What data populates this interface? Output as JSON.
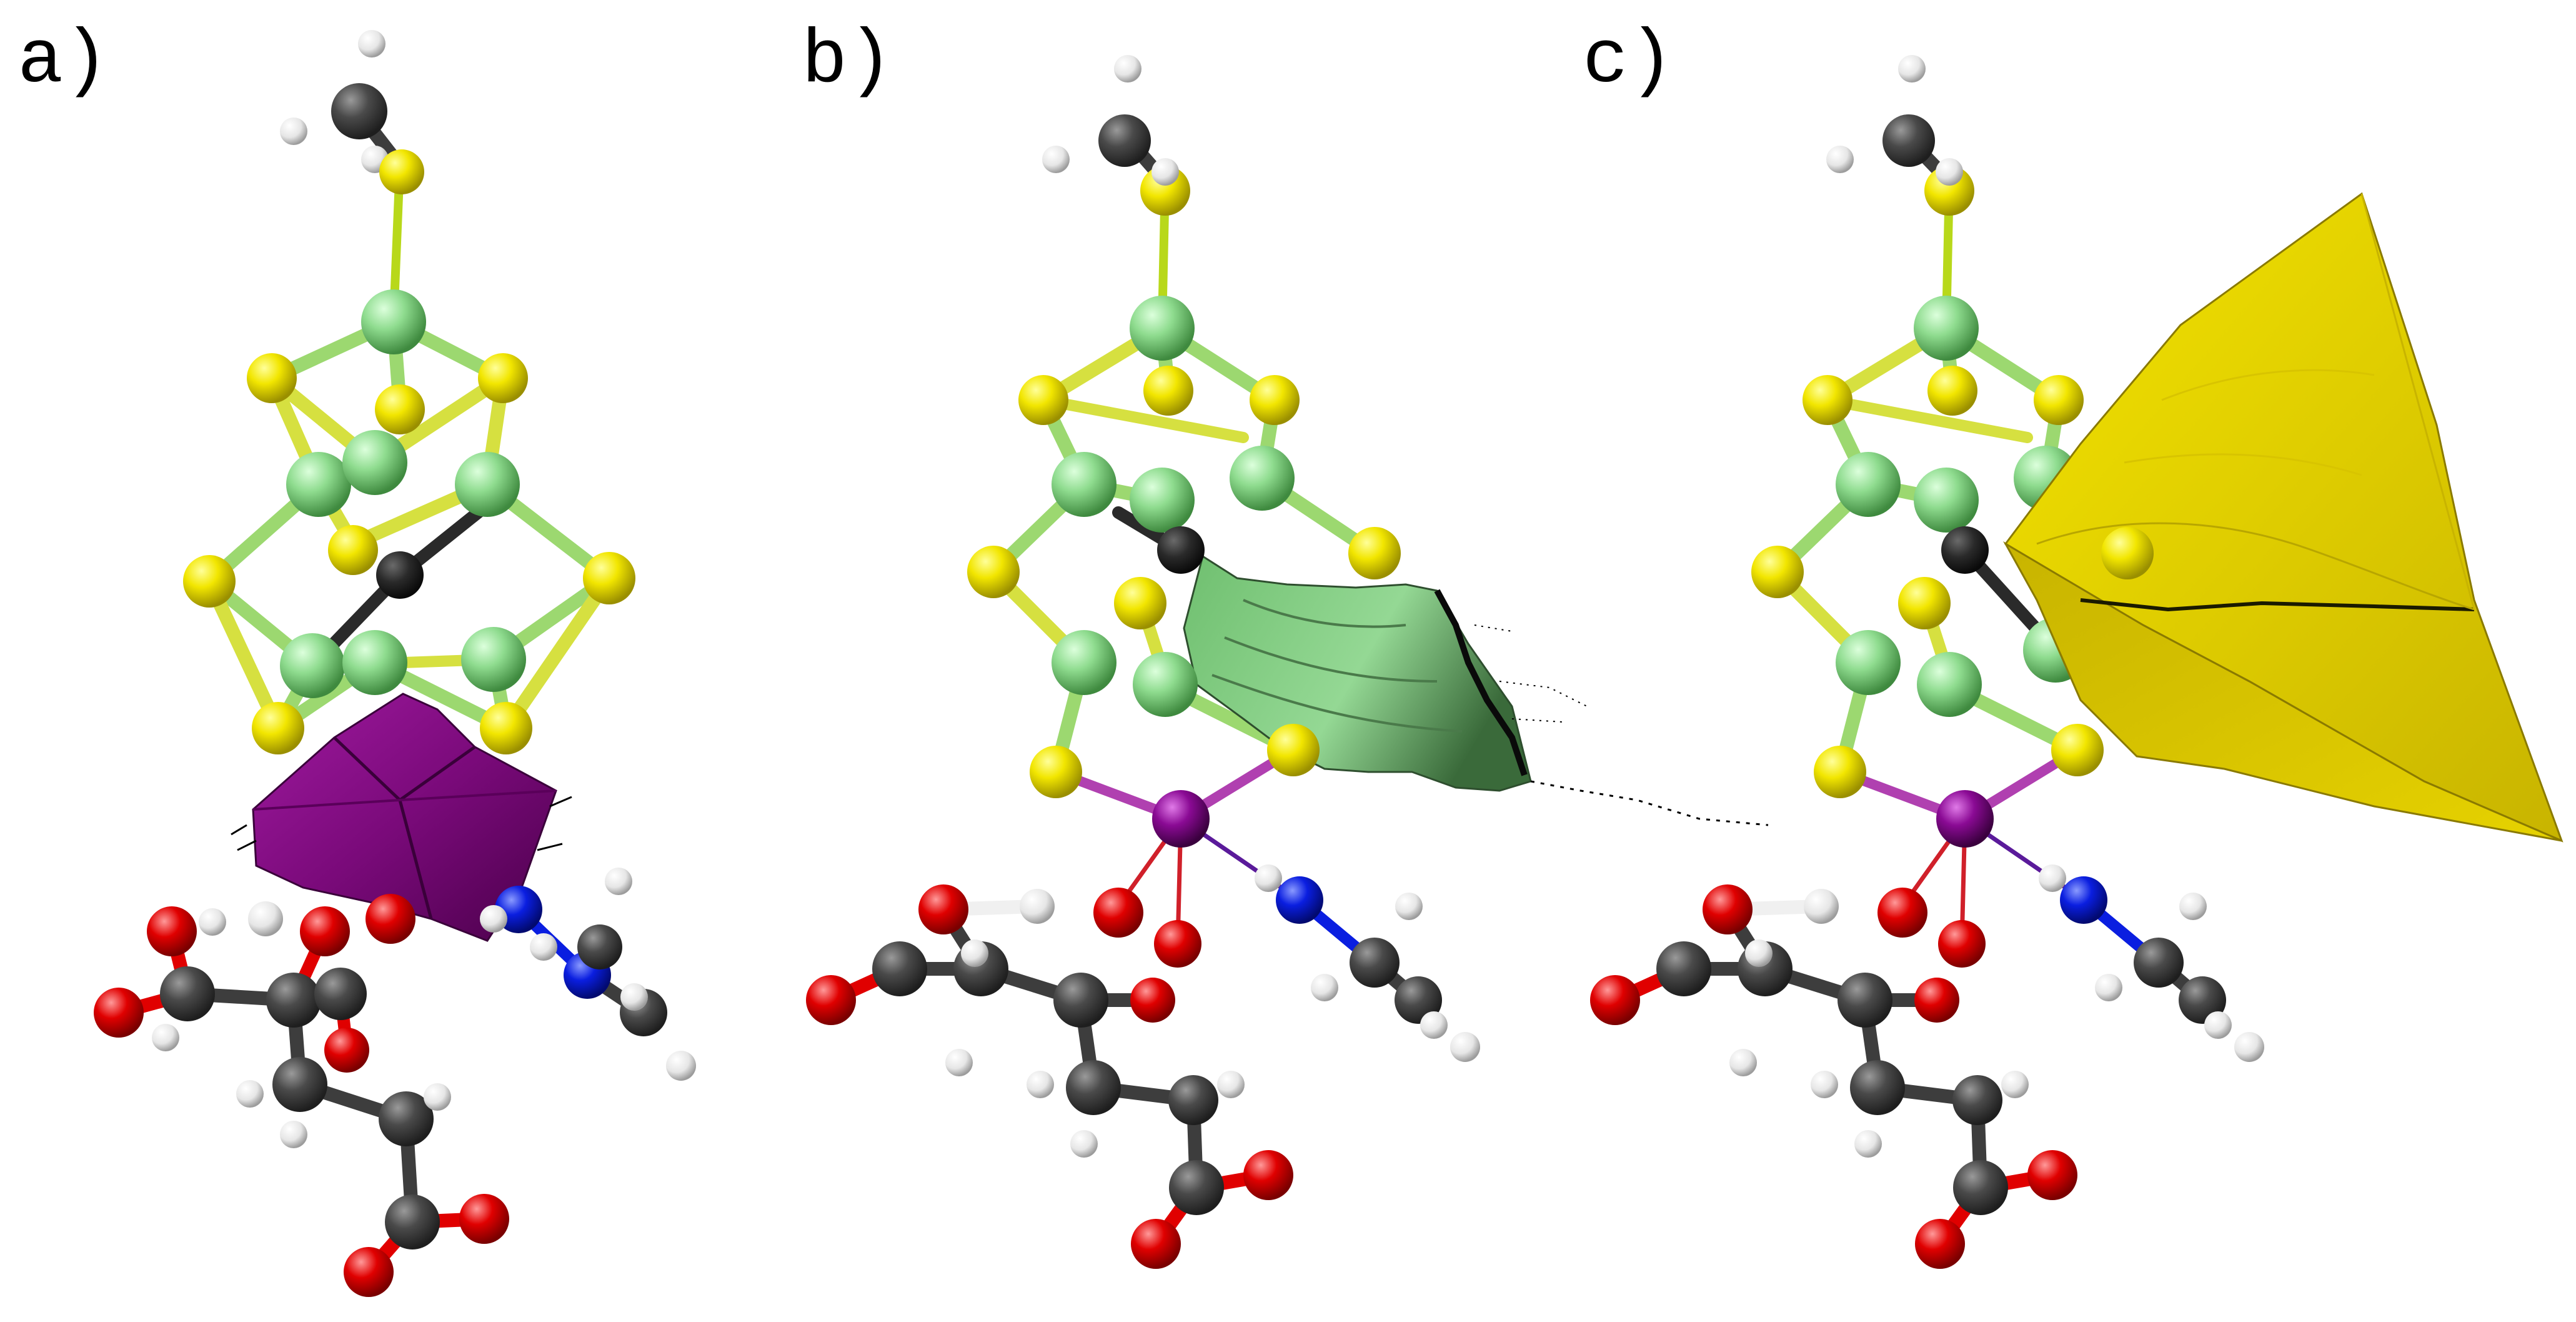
{
  "figure": {
    "panels": [
      {
        "id": "a",
        "label": "a)",
        "surface": "purple-surface",
        "surface_color": "#7a0a7a"
      },
      {
        "id": "b",
        "label": "b)",
        "surface": "green-surface",
        "surface_color": "#7fc97f"
      },
      {
        "id": "c",
        "label": "c)",
        "surface": "yellow-surface",
        "surface_color": "#e6d200"
      }
    ]
  },
  "colors": {
    "background": "#ffffff",
    "carbon": "#3d3d3d",
    "hydrogen": "#f0f0f0",
    "sulfur": "#f2e600",
    "cluster_metal": "#8fdc8f",
    "oxygen": "#e00000",
    "nitrogen": "#0a1ee0",
    "central_metal": "#8a0a94",
    "central_carbide": "#2a2a2a"
  }
}
